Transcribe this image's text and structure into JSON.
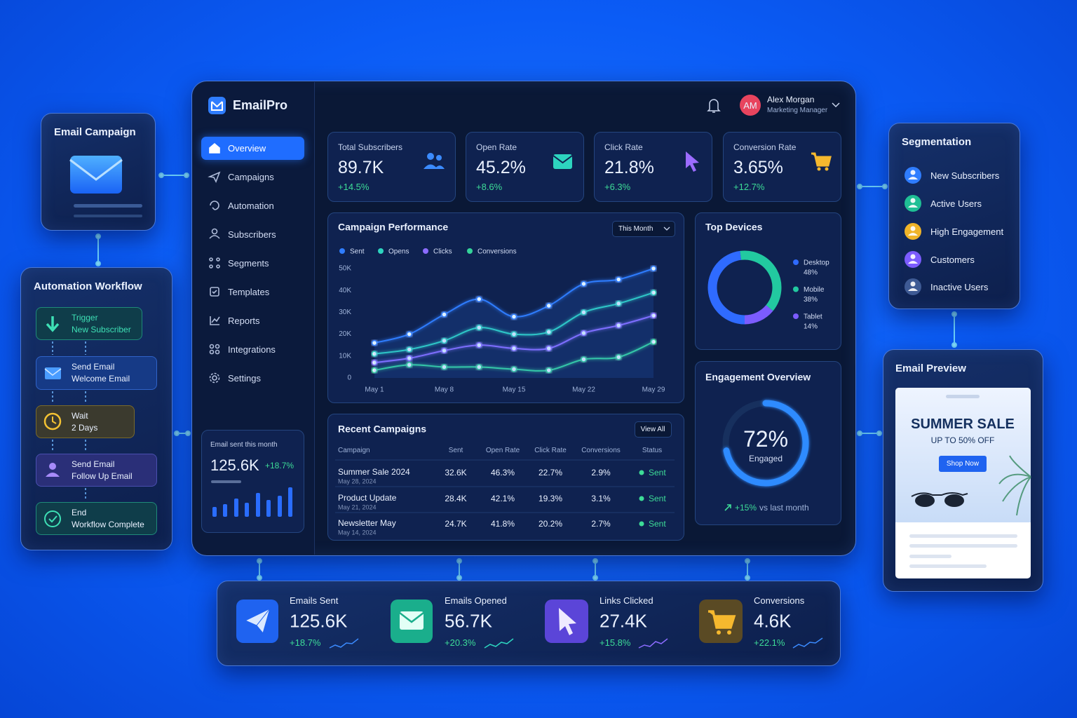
{
  "email_campaign": {
    "title": "Email Campaign"
  },
  "automation_workflow": {
    "title": "Automation Workflow",
    "steps": [
      {
        "title": "Trigger",
        "detail": "New Subscriber"
      },
      {
        "title": "Send Email",
        "detail": "Welcome Email"
      },
      {
        "title": "Wait",
        "detail": "2 Days"
      },
      {
        "title": "Send Email",
        "detail": "Follow Up Email"
      },
      {
        "title": "End",
        "detail": "Workflow Complete"
      }
    ]
  },
  "sidebar": {
    "brand": "EmailPro",
    "nav": [
      "Overview",
      "Campaigns",
      "Automation",
      "Subscribers",
      "Segments",
      "Templates",
      "Reports",
      "Integrations",
      "Settings"
    ],
    "sent_card": {
      "label": "Email sent this month",
      "value": "125.6K",
      "change": "+18.7%"
    }
  },
  "header": {
    "avatar": "AM",
    "name": "Alex Morgan",
    "role": "Marketing Manager"
  },
  "kpis": [
    {
      "label": "Total Subscribers",
      "value": "89.7K",
      "change": "+14.5%"
    },
    {
      "label": "Open Rate",
      "value": "45.2%",
      "change": "+8.6%"
    },
    {
      "label": "Click Rate",
      "value": "21.8%",
      "change": "+6.3%"
    },
    {
      "label": "Conversion Rate",
      "value": "3.65%",
      "change": "+12.7%"
    }
  ],
  "chart_data": [
    {
      "type": "line",
      "title": "Campaign Performance",
      "period": "This Month",
      "categories": [
        "May 1",
        null,
        "May 8",
        null,
        "May 15",
        null,
        "May 22",
        null,
        "May 29"
      ],
      "series": [
        {
          "name": "Sent",
          "color": "#2f7dff",
          "values": [
            16000,
            20000,
            29000,
            36000,
            28000,
            33000,
            43000,
            45000,
            50000
          ]
        },
        {
          "name": "Opens",
          "color": "#2dd4bf",
          "values": [
            11000,
            13000,
            17000,
            23000,
            20000,
            21000,
            30000,
            34000,
            39000
          ]
        },
        {
          "name": "Clicks",
          "color": "#8b6cff",
          "values": [
            7000,
            9000,
            12500,
            15000,
            13500,
            13500,
            20500,
            24000,
            28500
          ]
        },
        {
          "name": "Conversions",
          "color": "#34d399",
          "values": [
            3500,
            6000,
            5000,
            5000,
            4000,
            3500,
            8500,
            9500,
            16500
          ]
        }
      ],
      "ylim": [
        0,
        50000
      ],
      "yticks": [
        0,
        {
          "value": 10000,
          "label": "10K"
        },
        {
          "value": 20000,
          "label": "20K"
        },
        {
          "value": 30000,
          "label": "30K"
        },
        {
          "value": 40000,
          "label": "40K"
        },
        {
          "value": 50000,
          "label": "50K"
        }
      ],
      "grid": false
    },
    {
      "type": "donut",
      "title": "Top Devices",
      "categories": [
        "Desktop",
        "Mobile",
        "Tablet"
      ],
      "values": [
        48,
        38,
        14
      ],
      "value_labels": [
        "48%",
        "38%",
        "14%"
      ],
      "colors": [
        "#2f6bff",
        "#22c9a0",
        "#7c5cff"
      ]
    },
    {
      "type": "gauge",
      "title": "Engagement Overview",
      "value": 72,
      "value_label": "72%",
      "caption": "Engaged",
      "ylim": [
        0,
        100
      ],
      "color": "#2f8bff",
      "trend": "+15%",
      "trend_text": "vs last month"
    }
  ],
  "recent_campaigns": {
    "title": "Recent Campaigns",
    "action": "View All",
    "columns": [
      "Campaign",
      "Sent",
      "Open Rate",
      "Click Rate",
      "Conversions",
      "Status"
    ],
    "rows": [
      {
        "name": "Summer Sale 2024",
        "date": "May 28, 2024",
        "sent": "32.6K",
        "open_rate": "46.3%",
        "click_rate": "22.7%",
        "conversions": "2.9%",
        "status": "Sent"
      },
      {
        "name": "Product Update",
        "date": "May 21, 2024",
        "sent": "28.4K",
        "open_rate": "42.1%",
        "click_rate": "19.3%",
        "conversions": "3.1%",
        "status": "Sent"
      },
      {
        "name": "Newsletter May",
        "date": "May 14, 2024",
        "sent": "24.7K",
        "open_rate": "41.8%",
        "click_rate": "20.2%",
        "conversions": "2.7%",
        "status": "Sent"
      }
    ]
  },
  "segmentation": {
    "title": "Segmentation",
    "items": [
      "New Subscribers",
      "Active Users",
      "High Engagement",
      "Customers",
      "Inactive Users"
    ]
  },
  "email_preview": {
    "title": "Email Preview",
    "headline": "SUMMER SALE",
    "subheadline": "UP TO 50% OFF",
    "button": "Shop Now"
  },
  "summary": [
    {
      "label": "Emails Sent",
      "value": "125.6K",
      "change": "+18.7%"
    },
    {
      "label": "Emails Opened",
      "value": "56.7K",
      "change": "+20.3%"
    },
    {
      "label": "Links Clicked",
      "value": "27.4K",
      "change": "+15.8%"
    },
    {
      "label": "Conversions",
      "value": "4.6K",
      "change": "+22.1%"
    }
  ]
}
